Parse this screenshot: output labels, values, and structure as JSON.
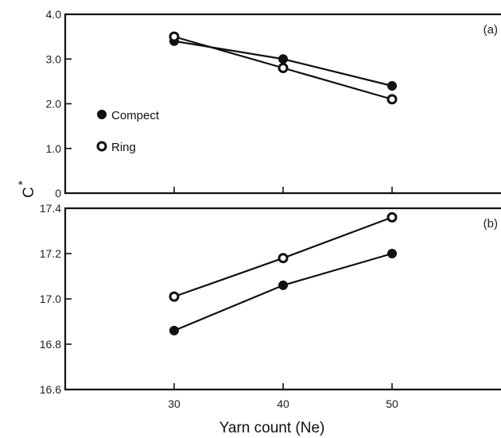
{
  "chart_data": [
    {
      "type": "line",
      "panel_label": "(a)",
      "x": [
        30,
        40,
        50
      ],
      "xticks": [
        "30",
        "40",
        "50"
      ],
      "ylim": [
        0,
        4.0
      ],
      "yticks": [
        "0",
        "1.0",
        "2.0",
        "3.0",
        "4.0"
      ],
      "xlabel": "Yarn count (Ne)",
      "ylabel": "C*",
      "legend": {
        "placement": "left",
        "entries": [
          "Compect",
          "Ring"
        ]
      },
      "series": [
        {
          "name": "Compect",
          "marker": "filled-circle",
          "values": [
            3.4,
            3.0,
            2.4
          ]
        },
        {
          "name": "Ring",
          "marker": "open-circle",
          "values": [
            3.5,
            2.8,
            2.1
          ]
        }
      ]
    },
    {
      "type": "line",
      "panel_label": "(b)",
      "x": [
        30,
        40,
        50
      ],
      "xticks": [
        "30",
        "40",
        "50"
      ],
      "ylim": [
        16.6,
        17.4
      ],
      "yticks": [
        "16.6",
        "16.8",
        "17.0",
        "17.2",
        "17.4"
      ],
      "xlabel": "Yarn count (Ne)",
      "ylabel": "C*",
      "series": [
        {
          "name": "Compect",
          "marker": "filled-circle",
          "values": [
            16.86,
            17.06,
            17.2
          ]
        },
        {
          "name": "Ring",
          "marker": "open-circle",
          "values": [
            17.01,
            17.18,
            17.36
          ]
        }
      ]
    }
  ],
  "axis_titles": {
    "x": "Yarn count (Ne)",
    "y_letter": "C",
    "y_superscript": "*"
  },
  "colors": {
    "ink": "#111111",
    "background": "#ffffff"
  }
}
